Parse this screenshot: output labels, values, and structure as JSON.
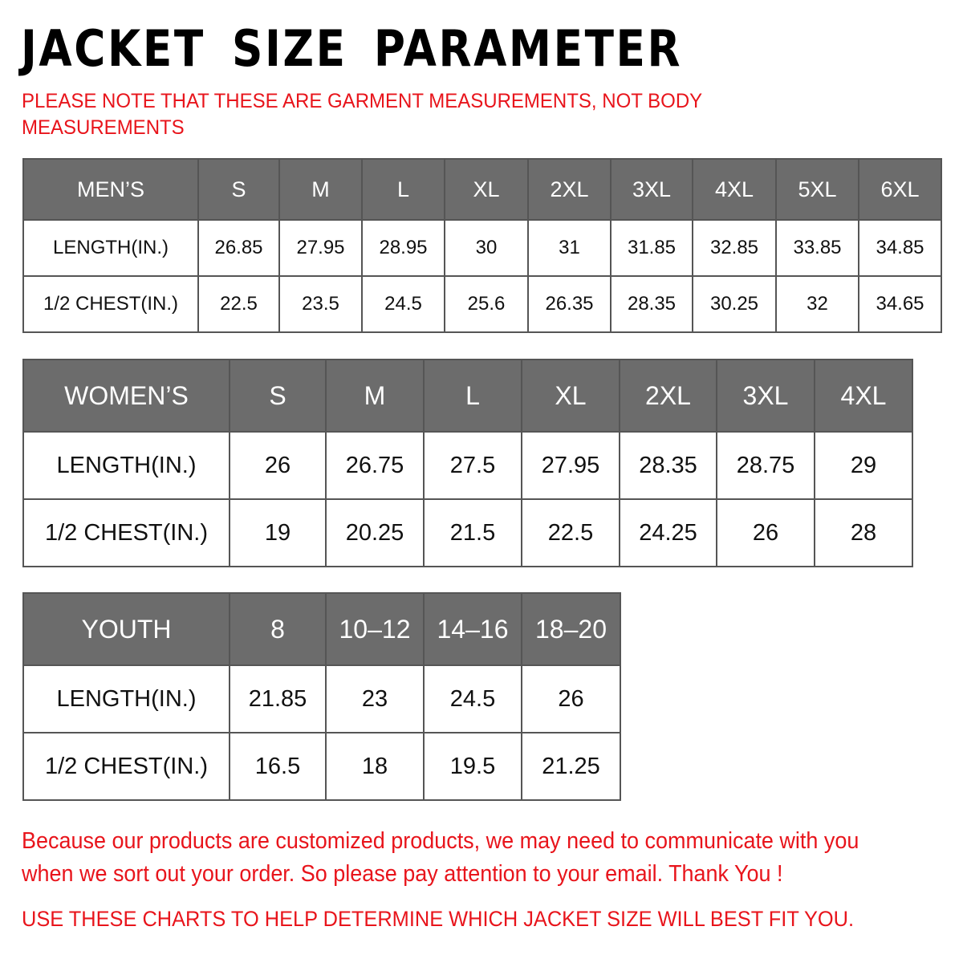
{
  "title": "JACKET SIZE PARAMETER",
  "note": "PLEASE NOTE THAT THESE ARE GARMENT MEASUREMENTS, NOT BODY MEASUREMENTS",
  "colors": {
    "header_bg": "#6c6c6c",
    "accent_red": "#e8141b"
  },
  "tables": {
    "men": {
      "header": [
        "MEN’S",
        "S",
        "M",
        "L",
        "XL",
        "2XL",
        "3XL",
        "4XL",
        "5XL",
        "6XL"
      ],
      "rows": [
        [
          "LENGTH(IN.)",
          "26.85",
          "27.95",
          "28.95",
          "30",
          "31",
          "31.85",
          "32.85",
          "33.85",
          "34.85"
        ],
        [
          "1/2 CHEST(IN.)",
          "22.5",
          "23.5",
          "24.5",
          "25.6",
          "26.35",
          "28.35",
          "30.25",
          "32",
          "34.65"
        ]
      ]
    },
    "women": {
      "header": [
        "WOMEN’S",
        "S",
        "M",
        "L",
        "XL",
        "2XL",
        "3XL",
        "4XL"
      ],
      "rows": [
        [
          "LENGTH(IN.)",
          "26",
          "26.75",
          "27.5",
          "27.95",
          "28.35",
          "28.75",
          "29"
        ],
        [
          "1/2 CHEST(IN.)",
          "19",
          "20.25",
          "21.5",
          "22.5",
          "24.25",
          "26",
          "28"
        ]
      ]
    },
    "youth": {
      "header": [
        "YOUTH",
        "8",
        "10–12",
        "14–16",
        "18–20"
      ],
      "rows": [
        [
          "LENGTH(IN.)",
          "21.85",
          "23",
          "24.5",
          "26"
        ],
        [
          "1/2 CHEST(IN.)",
          "16.5",
          "18",
          "19.5",
          "21.25"
        ]
      ]
    }
  },
  "footer": "Because our products are customized products, we may need to communicate with you when we sort out your order. So please pay attention to your email. Thank You !",
  "footer2": "USE THESE CHARTS TO HELP DETERMINE WHICH JACKET SIZE WILL BEST FIT YOU."
}
